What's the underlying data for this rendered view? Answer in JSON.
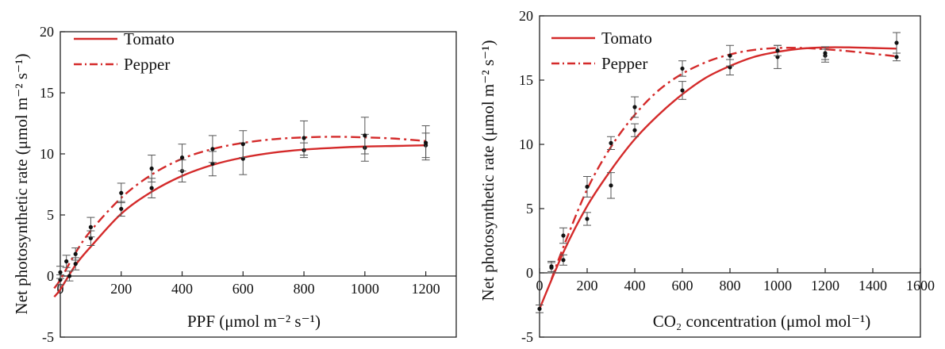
{
  "colors": {
    "tomato": "#d42a2a",
    "pepper": "#d42a2a",
    "axis": "#222222",
    "points": "#111111"
  },
  "chart_data": [
    {
      "type": "line",
      "xlabel": "PPF (μmol m⁻² s⁻¹)",
      "ylabel": "Net photosynthetic rate (μmol m⁻² s⁻¹)",
      "xlim": [
        0,
        1300
      ],
      "ylim": [
        -5,
        20
      ],
      "xticks": [
        0,
        200,
        400,
        600,
        800,
        1000,
        1200
      ],
      "yticks": [
        -5,
        0,
        5,
        10,
        15,
        20
      ],
      "legend": "top-left",
      "grid": false,
      "series": [
        {
          "name": "Tomato",
          "style": "solid",
          "x": [
            0,
            30,
            50,
            100,
            200,
            300,
            400,
            500,
            600,
            800,
            1000,
            1200
          ],
          "y": [
            -0.3,
            0.0,
            1.0,
            3.1,
            5.5,
            7.2,
            8.6,
            9.2,
            9.6,
            10.3,
            10.5,
            10.7
          ],
          "err": [
            0.4,
            0.4,
            0.5,
            0.6,
            0.6,
            0.8,
            0.9,
            1.0,
            1.3,
            0.6,
            1.1,
            1.0
          ],
          "curve_x": [
            -20,
            0,
            50,
            100,
            200,
            300,
            400,
            500,
            600,
            700,
            800,
            900,
            1000,
            1100,
            1200
          ],
          "curve_y": [
            -1.7,
            -1.1,
            0.9,
            2.4,
            5.1,
            6.9,
            8.2,
            9.1,
            9.7,
            10.1,
            10.35,
            10.5,
            10.6,
            10.65,
            10.7
          ]
        },
        {
          "name": "Pepper",
          "style": "dashdot",
          "x": [
            0,
            20,
            50,
            100,
            200,
            300,
            400,
            500,
            600,
            800,
            1000,
            1200
          ],
          "y": [
            0.3,
            1.2,
            1.8,
            4.0,
            6.8,
            8.8,
            9.7,
            10.4,
            10.8,
            11.3,
            11.5,
            10.9
          ],
          "err": [
            0.5,
            0.5,
            0.5,
            0.8,
            0.8,
            1.1,
            1.1,
            1.1,
            1.1,
            1.4,
            1.5,
            1.4
          ],
          "curve_x": [
            -20,
            0,
            50,
            100,
            200,
            300,
            400,
            500,
            600,
            700,
            800,
            900,
            1000,
            1100,
            1200
          ],
          "curve_y": [
            -1.0,
            -0.3,
            1.9,
            3.7,
            6.4,
            8.3,
            9.6,
            10.4,
            10.9,
            11.2,
            11.35,
            11.4,
            11.35,
            11.25,
            11.05
          ]
        }
      ]
    },
    {
      "type": "line",
      "xlabel": "CO₂ concentration (μmol mol⁻¹)",
      "ylabel": "Net photosynthetic rate (μmol m⁻² s⁻¹)",
      "xlim": [
        0,
        1600
      ],
      "ylim": [
        -5,
        20
      ],
      "xticks": [
        0,
        200,
        400,
        600,
        800,
        1000,
        1200,
        1400,
        1600
      ],
      "yticks": [
        -5,
        0,
        5,
        10,
        15,
        20
      ],
      "legend": "top-left",
      "grid": false,
      "series": [
        {
          "name": "Tomato",
          "style": "solid",
          "x": [
            0,
            50,
            100,
            200,
            300,
            400,
            600,
            800,
            1000,
            1200,
            1500
          ],
          "y": [
            -2.8,
            0.4,
            1.0,
            4.2,
            6.8,
            11.1,
            14.2,
            16.0,
            16.8,
            16.9,
            16.8
          ],
          "err": [
            0.3,
            0.4,
            0.4,
            0.5,
            1.0,
            0.5,
            0.7,
            0.6,
            0.9,
            0.5,
            0.3
          ],
          "curve_x": [
            0,
            100,
            200,
            300,
            400,
            500,
            600,
            700,
            800,
            900,
            1000,
            1100,
            1200,
            1300,
            1400,
            1500
          ],
          "curve_y": [
            -2.8,
            1.6,
            5.2,
            8.0,
            10.4,
            12.3,
            13.9,
            15.2,
            16.1,
            16.8,
            17.2,
            17.45,
            17.55,
            17.55,
            17.5,
            17.45
          ]
        },
        {
          "name": "Pepper",
          "style": "dashdot",
          "x": [
            50,
            100,
            200,
            300,
            400,
            600,
            800,
            1000,
            1200,
            1500
          ],
          "y": [
            0.5,
            2.9,
            6.7,
            10.1,
            12.9,
            15.9,
            16.9,
            17.3,
            17.1,
            17.9
          ],
          "err": [
            0.4,
            0.6,
            0.8,
            0.5,
            0.8,
            0.6,
            0.8,
            0.4,
            0.5,
            0.8
          ],
          "curve_x": [
            50,
            100,
            200,
            300,
            400,
            500,
            600,
            700,
            800,
            900,
            1000,
            1100,
            1200,
            1300,
            1400,
            1500
          ],
          "curve_y": [
            -0.5,
            2.0,
            6.5,
            9.8,
            12.3,
            14.2,
            15.5,
            16.4,
            17.0,
            17.35,
            17.5,
            17.5,
            17.4,
            17.25,
            17.05,
            16.85
          ]
        }
      ]
    }
  ]
}
